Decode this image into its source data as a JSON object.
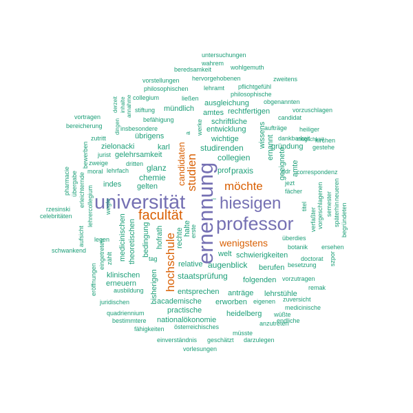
{
  "palette": {
    "green": "#1b9e77",
    "orange": "#d95f02",
    "purple": "#7570b3"
  },
  "words": [
    {
      "text": "universität",
      "color": "purple"
    },
    {
      "text": "ernennung",
      "color": "purple"
    },
    {
      "text": "professor",
      "color": "purple"
    },
    {
      "text": "hiesigen",
      "color": "purple"
    },
    {
      "text": "facultät",
      "color": "orange"
    },
    {
      "text": "hochschule",
      "color": "orange"
    },
    {
      "text": "studien",
      "color": "orange"
    },
    {
      "text": "möchte",
      "color": "orange"
    },
    {
      "text": "wenigstens",
      "color": "orange"
    },
    {
      "text": "candidaten",
      "color": "orange"
    },
    {
      "text": "untersuchungen",
      "color": "green"
    },
    {
      "text": "wahrem",
      "color": "green"
    },
    {
      "text": "beredsamkeit",
      "color": "green"
    },
    {
      "text": "wohlgemuth",
      "color": "green"
    },
    {
      "text": "hervorgehobenen",
      "color": "green"
    },
    {
      "text": "vorstellungen",
      "color": "green"
    },
    {
      "text": "zweitens",
      "color": "green"
    },
    {
      "text": "philosophischen",
      "color": "green"
    },
    {
      "text": "lehramt",
      "color": "green"
    },
    {
      "text": "pflichtgefühl",
      "color": "green"
    },
    {
      "text": "philosophische",
      "color": "green"
    },
    {
      "text": "collegium",
      "color": "green"
    },
    {
      "text": "ließen",
      "color": "green"
    },
    {
      "text": "obgenannten",
      "color": "green"
    },
    {
      "text": "ausgleichung",
      "color": "green"
    },
    {
      "text": "vorzuschlagen",
      "color": "green"
    },
    {
      "text": "mündlich",
      "color": "green"
    },
    {
      "text": "rechtfertigen",
      "color": "green"
    },
    {
      "text": "stiftung",
      "color": "green"
    },
    {
      "text": "amtes",
      "color": "green"
    },
    {
      "text": "candidat",
      "color": "green"
    },
    {
      "text": "vortragen",
      "color": "green"
    },
    {
      "text": "befähigung",
      "color": "green"
    },
    {
      "text": "schriftliche",
      "color": "green"
    },
    {
      "text": "aufträge",
      "color": "green"
    },
    {
      "text": "heiliger",
      "color": "green"
    },
    {
      "text": "bereicherung",
      "color": "green"
    },
    {
      "text": "insbesondere",
      "color": "green"
    },
    {
      "text": "entwicklung",
      "color": "green"
    },
    {
      "text": "dankbarkeit",
      "color": "green"
    },
    {
      "text": "kirchen",
      "color": "green"
    },
    {
      "text": "übrigens",
      "color": "green"
    },
    {
      "text": "wichtige",
      "color": "green"
    },
    {
      "text": "gründung",
      "color": "green"
    },
    {
      "text": "gestehe",
      "color": "green"
    },
    {
      "text": "zutritt",
      "color": "green"
    },
    {
      "text": "möglichkeit",
      "color": "green"
    },
    {
      "text": "zielonacki",
      "color": "green"
    },
    {
      "text": "karl",
      "color": "green"
    },
    {
      "text": "studirenden",
      "color": "green"
    },
    {
      "text": "jurist",
      "color": "green"
    },
    {
      "text": "gelehrsamkeit",
      "color": "green"
    },
    {
      "text": "collegien",
      "color": "green"
    },
    {
      "text": "zweige",
      "color": "green"
    },
    {
      "text": "dritten",
      "color": "green"
    },
    {
      "text": "glanz",
      "color": "green"
    },
    {
      "text": "prof",
      "color": "green"
    },
    {
      "text": "praxis",
      "color": "green"
    },
    {
      "text": "ddr",
      "color": "green"
    },
    {
      "text": "correspondenz",
      "color": "green"
    },
    {
      "text": "moral",
      "color": "green"
    },
    {
      "text": "lehrfach",
      "color": "green"
    },
    {
      "text": "chemie",
      "color": "green"
    },
    {
      "text": "indes",
      "color": "green"
    },
    {
      "text": "jezt",
      "color": "green"
    },
    {
      "text": "gelten",
      "color": "green"
    },
    {
      "text": "fächer",
      "color": "green"
    },
    {
      "text": "rzesinski",
      "color": "green"
    },
    {
      "text": "celebritäten",
      "color": "green"
    },
    {
      "text": "überdies",
      "color": "green"
    },
    {
      "text": "botanik",
      "color": "green"
    },
    {
      "text": "ersehen",
      "color": "green"
    },
    {
      "text": "schwankend",
      "color": "green"
    },
    {
      "text": "legen",
      "color": "green"
    },
    {
      "text": "welt",
      "color": "green"
    },
    {
      "text": "schwierigkeiten",
      "color": "green"
    },
    {
      "text": "tag",
      "color": "green"
    },
    {
      "text": "relative",
      "color": "green"
    },
    {
      "text": "augenblick",
      "color": "green"
    },
    {
      "text": "berufen",
      "color": "green"
    },
    {
      "text": "besetzung",
      "color": "green"
    },
    {
      "text": "klinischen",
      "color": "green"
    },
    {
      "text": "staatsprüfung",
      "color": "green"
    },
    {
      "text": "folgenden",
      "color": "green"
    },
    {
      "text": "vorzutragen",
      "color": "green"
    },
    {
      "text": "erneuern",
      "color": "green"
    },
    {
      "text": "remak",
      "color": "green"
    },
    {
      "text": "ausbildung",
      "color": "green"
    },
    {
      "text": "entsprechen",
      "color": "green"
    },
    {
      "text": "anträge",
      "color": "green"
    },
    {
      "text": "lehrstühle",
      "color": "green"
    },
    {
      "text": "zuversicht",
      "color": "green"
    },
    {
      "text": "juridischen",
      "color": "green"
    },
    {
      "text": "academische",
      "color": "green"
    },
    {
      "text": "erworben",
      "color": "green"
    },
    {
      "text": "eigenen",
      "color": "green"
    },
    {
      "text": "medicinische",
      "color": "green"
    },
    {
      "text": "practische",
      "color": "green"
    },
    {
      "text": "quadriennium",
      "color": "green"
    },
    {
      "text": "heidelberg",
      "color": "green"
    },
    {
      "text": "wüßte",
      "color": "green"
    },
    {
      "text": "bestimmtere",
      "color": "green"
    },
    {
      "text": "nationalökonomie",
      "color": "green"
    },
    {
      "text": "anzutreten",
      "color": "green"
    },
    {
      "text": "endliche",
      "color": "green"
    },
    {
      "text": "österreichisches",
      "color": "green"
    },
    {
      "text": "fähigkeiten",
      "color": "green"
    },
    {
      "text": "müsste",
      "color": "green"
    },
    {
      "text": "einverständnis",
      "color": "green"
    },
    {
      "text": "geschätzt",
      "color": "green"
    },
    {
      "text": "darzulegen",
      "color": "green"
    },
    {
      "text": "vorlesungen",
      "color": "green"
    },
    {
      "text": "derzeit",
      "color": "green"
    },
    {
      "text": "inhalte",
      "color": "green"
    },
    {
      "text": "annahme",
      "color": "green"
    },
    {
      "text": "dingen",
      "color": "green"
    },
    {
      "text": "bewerben",
      "color": "green"
    },
    {
      "text": "werke",
      "color": "green"
    },
    {
      "text": "wissens",
      "color": "green"
    },
    {
      "text": "ernannt",
      "color": "green"
    },
    {
      "text": "geeignete",
      "color": "green"
    },
    {
      "text": "amte",
      "color": "green"
    },
    {
      "text": "pharmacie",
      "color": "green"
    },
    {
      "text": "übergabe",
      "color": "green"
    },
    {
      "text": "erleichternde",
      "color": "green"
    },
    {
      "text": "lehrercollegium",
      "color": "green"
    },
    {
      "text": "wegle",
      "color": "green"
    },
    {
      "text": "titel",
      "color": "green"
    },
    {
      "text": "vorgeschlagenen",
      "color": "green"
    },
    {
      "text": "semester",
      "color": "green"
    },
    {
      "text": "späterhin",
      "color": "green"
    },
    {
      "text": "neueren",
      "color": "green"
    },
    {
      "text": "begründeten",
      "color": "green"
    },
    {
      "text": "verfaßter",
      "color": "green"
    },
    {
      "text": "medicinischen",
      "color": "green"
    },
    {
      "text": "theoretischen",
      "color": "green"
    },
    {
      "text": "bedingung",
      "color": "green"
    },
    {
      "text": "hofrath",
      "color": "green"
    },
    {
      "text": "rechte",
      "color": "green"
    },
    {
      "text": "halte",
      "color": "green"
    },
    {
      "text": "erste",
      "color": "green"
    },
    {
      "text": "aufsicht",
      "color": "green"
    },
    {
      "text": "eingetreten",
      "color": "green"
    },
    {
      "text": "zählt",
      "color": "green"
    },
    {
      "text": "eröffnungen",
      "color": "green"
    },
    {
      "text": "bisherigen",
      "color": "green"
    },
    {
      "text": "doctorat",
      "color": "green"
    },
    {
      "text": "szpor",
      "color": "green"
    },
    {
      "text": "a",
      "color": "green"
    },
    {
      "text": "i",
      "color": "green"
    }
  ]
}
